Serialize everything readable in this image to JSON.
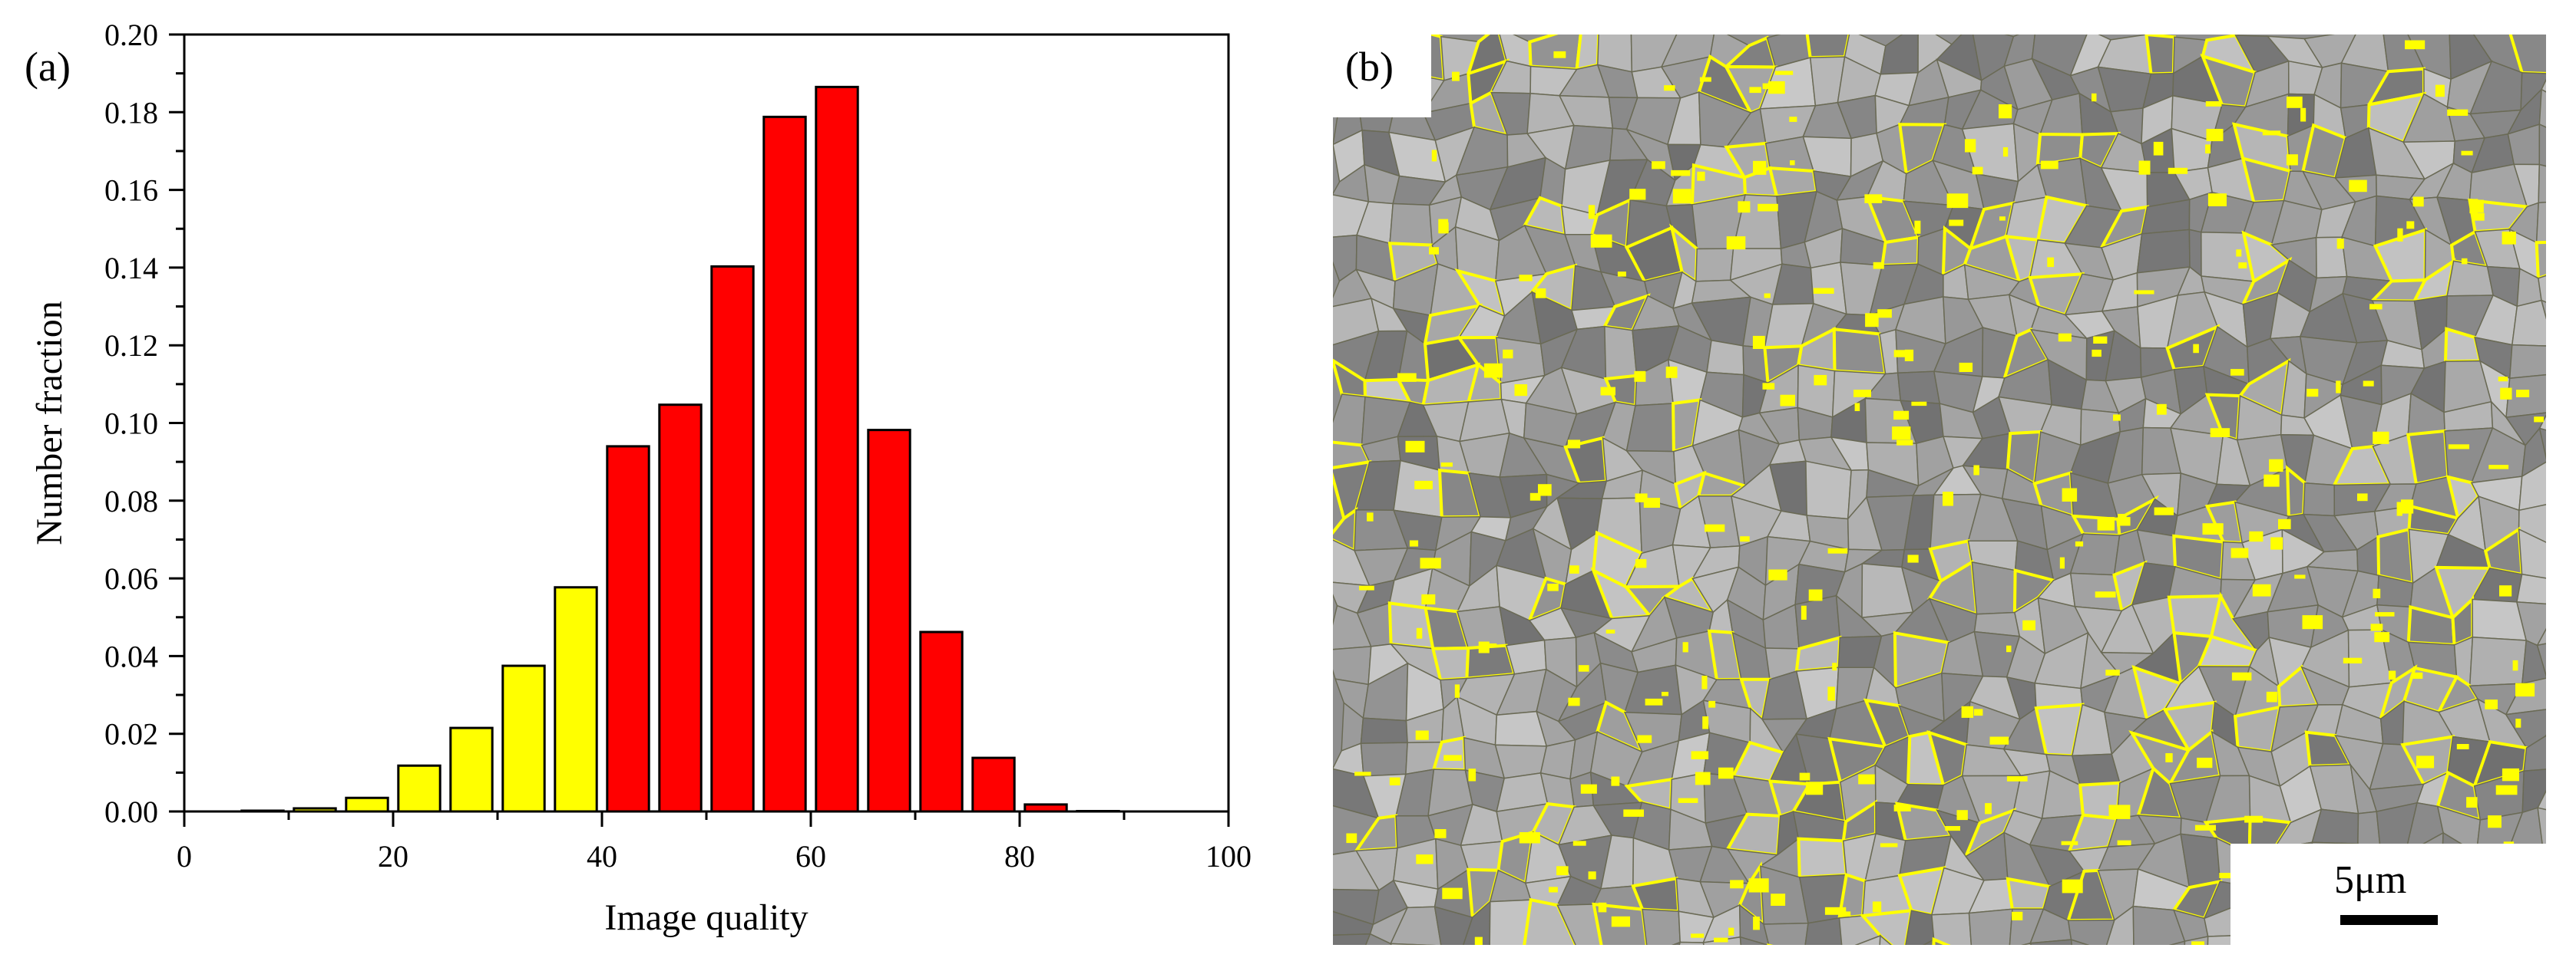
{
  "panel_a_label": "(a)",
  "panel_b_label": "(b)",
  "scale_bar_label": "5μm",
  "colors": {
    "low_iq": "#ffff00",
    "high_iq": "#ff0000",
    "boundary": "#ffff00",
    "micrograph_base": "#8f8f8f"
  },
  "chart_data": {
    "type": "bar",
    "title": "",
    "xlabel": "Image quality",
    "ylabel": "Number fraction",
    "xlim": [
      0,
      100
    ],
    "ylim": [
      0,
      0.2
    ],
    "xticks": [
      "0",
      "20",
      "40",
      "60",
      "80",
      "100"
    ],
    "yticks": [
      "0.00",
      "0.02",
      "0.04",
      "0.06",
      "0.08",
      "0.10",
      "0.12",
      "0.14",
      "0.16",
      "0.18",
      "0.20"
    ],
    "grid": false,
    "x": [
      7.5,
      12.5,
      17.5,
      22.5,
      27.5,
      32.5,
      37.5,
      42.5,
      47.5,
      52.5,
      57.5,
      62.5,
      67.5,
      72.5,
      77.5,
      82.5,
      87.5
    ],
    "values": [
      0.0002,
      0.0008,
      0.0035,
      0.0118,
      0.0215,
      0.0375,
      0.0577,
      0.094,
      0.1047,
      0.1403,
      0.1788,
      0.1865,
      0.0982,
      0.0462,
      0.0138,
      0.0018,
      0.0001
    ],
    "colors": [
      "low_iq",
      "low_iq",
      "low_iq",
      "low_iq",
      "low_iq",
      "low_iq",
      "low_iq",
      "high_iq",
      "high_iq",
      "high_iq",
      "high_iq",
      "high_iq",
      "high_iq",
      "high_iq",
      "high_iq",
      "high_iq",
      "high_iq"
    ]
  }
}
